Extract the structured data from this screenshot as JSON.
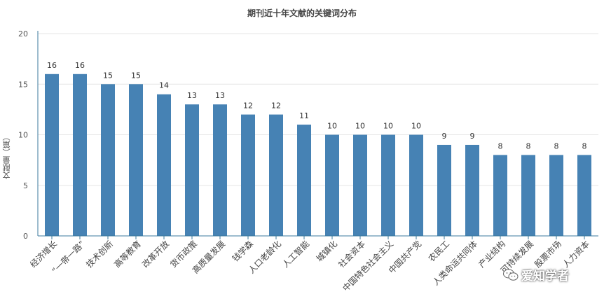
{
  "chart_data": {
    "type": "bar",
    "title": "期刊近十年文献的关键词分布",
    "ylabel": "文献量（篇）",
    "xlabel": "",
    "ylim": [
      0,
      20
    ],
    "yticks": [
      0,
      5,
      10,
      15,
      20
    ],
    "grid": true,
    "bar_color": "#4682B4",
    "categories": [
      "经济增长",
      "“一带一路”",
      "技术创新",
      "高等教育",
      "改革开放",
      "货币政策",
      "高质量发展",
      "钱学森",
      "人口老龄化",
      "人工智能",
      "城镇化",
      "社会资本",
      "中国特色社会主义",
      "中国共产党",
      "农民工",
      "人类命运共同体",
      "产业结构",
      "可持续发展",
      "股票市场",
      "人力资本"
    ],
    "values": [
      16,
      16,
      15,
      15,
      14,
      13,
      13,
      12,
      12,
      11,
      10,
      10,
      10,
      10,
      9,
      9,
      8,
      8,
      8,
      8
    ]
  },
  "watermark": {
    "text": "爱知学者",
    "icon": "wechat-icon"
  }
}
